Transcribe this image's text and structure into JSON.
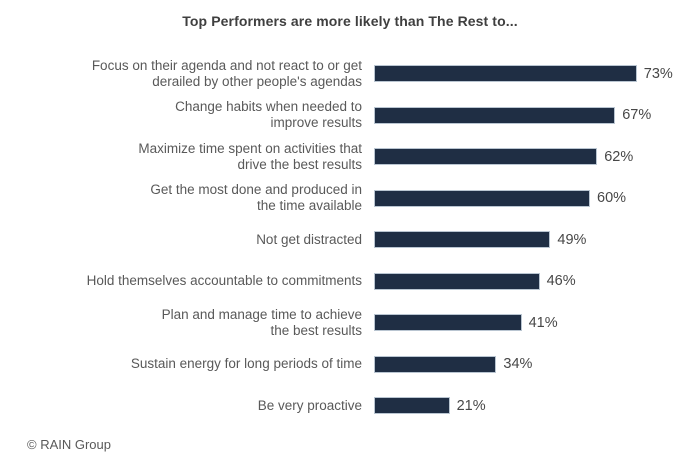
{
  "title": "Top Performers are more likely than The Rest to...",
  "footer": "© RAIN Group",
  "colors": {
    "bar_fill": "#1f2e44",
    "bar_outline": "#b9c5d1",
    "title_text": "#3f3f3f",
    "label_text": "#595959",
    "value_text": "#474747",
    "background": "#ffffff"
  },
  "chart_data": {
    "type": "bar",
    "orientation": "horizontal",
    "title": "Top Performers are more likely than The Rest to...",
    "xlabel": "",
    "ylabel": "",
    "xlim": [
      0,
      100
    ],
    "grid": false,
    "legend": false,
    "value_suffix": "%",
    "categories": [
      "Focus on their agenda and not react to or get derailed by other people's agendas",
      "Change habits when needed to improve results",
      "Maximize time spent on activities that drive the best results",
      "Get the most done and produced in the time available",
      "Not get distracted",
      "Hold themselves accountable to commitments",
      "Plan and manage time to achieve the best results",
      "Sustain energy for long periods of time",
      "Be very proactive"
    ],
    "values": [
      73,
      67,
      62,
      60,
      49,
      46,
      41,
      34,
      21
    ],
    "rows": [
      {
        "label_lines": [
          "Focus on their agenda and not react to or get",
          "derailed by other people's agendas"
        ],
        "value": 73,
        "value_label": "73%"
      },
      {
        "label_lines": [
          "Change habits when needed to",
          "improve results"
        ],
        "value": 67,
        "value_label": "67%"
      },
      {
        "label_lines": [
          "Maximize time spent on activities that",
          "drive the best results"
        ],
        "value": 62,
        "value_label": "62%"
      },
      {
        "label_lines": [
          "Get the most done and produced in",
          "the time available"
        ],
        "value": 60,
        "value_label": "60%"
      },
      {
        "label_lines": [
          "Not get distracted"
        ],
        "value": 49,
        "value_label": "49%"
      },
      {
        "label_lines": [
          "Hold themselves accountable to commitments"
        ],
        "value": 46,
        "value_label": "46%"
      },
      {
        "label_lines": [
          "Plan and manage time to achieve",
          "the best results"
        ],
        "value": 41,
        "value_label": "41%"
      },
      {
        "label_lines": [
          "Sustain energy for long periods of time"
        ],
        "value": 34,
        "value_label": "34%"
      },
      {
        "label_lines": [
          "Be very proactive"
        ],
        "value": 21,
        "value_label": "21%"
      }
    ]
  }
}
